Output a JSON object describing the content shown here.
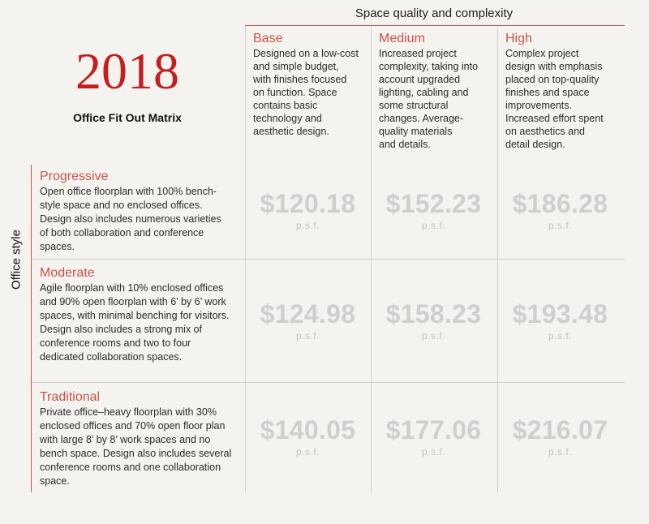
{
  "header": {
    "title": "Space quality and complexity",
    "year": "2018",
    "subtitle": "Office Fit Out Matrix",
    "side_label": "Office style"
  },
  "columns": [
    {
      "name": "Base",
      "desc_lines": [
        "Designed on a low-cost",
        "and simple budget,",
        "with finishes focused",
        "on function. Space",
        "contains basic",
        "technology and",
        "aesthetic design."
      ]
    },
    {
      "name": "Medium",
      "desc_lines": [
        "Increased project",
        "complexity, taking into",
        "account upgraded",
        "lighting, cabling and",
        "some structural",
        "changes. Average-",
        "quality materials",
        "and details."
      ]
    },
    {
      "name": "High",
      "desc_lines": [
        "Complex project",
        "design with emphasis",
        "placed on top-quality",
        "finishes and space",
        "improvements.",
        "Increased effort spent",
        "on aesthetics and",
        "detail design."
      ]
    }
  ],
  "rows": [
    {
      "name": "Progressive",
      "desc_lines": [
        "Open office floorplan with 100% bench-",
        "style space and no enclosed offices.",
        "Design also includes numerous varieties",
        "of both collaboration and conference",
        "spaces."
      ],
      "prices": [
        "$120.18",
        "$152.23",
        "$186.28"
      ]
    },
    {
      "name": "Moderate",
      "desc_lines": [
        "Agile floorplan with 10% enclosed offices",
        "and 90% open floorplan with 6’ by 6’ work",
        "spaces, with minimal benching for visitors.",
        "Design also includes a strong mix of",
        "conference rooms and two to four",
        "dedicated collaboration spaces."
      ],
      "prices": [
        "$124.98",
        "$158.23",
        "$193.48"
      ]
    },
    {
      "name": "Traditional",
      "desc_lines": [
        "Private office–heavy floorplan with 30%",
        "enclosed offices and 70% open floor plan",
        "with large 8’ by 8’ work spaces and no",
        "bench space. Design also includes several",
        "conference rooms and one collaboration",
        "space."
      ],
      "prices": [
        "$140.05",
        "$177.06",
        "$216.07"
      ]
    }
  ],
  "unit": "p.s.f.",
  "colors": {
    "accent": "#c9534a",
    "year": "#c41e1e",
    "price": "#cfcfcf",
    "background": "#f5f3ef"
  }
}
